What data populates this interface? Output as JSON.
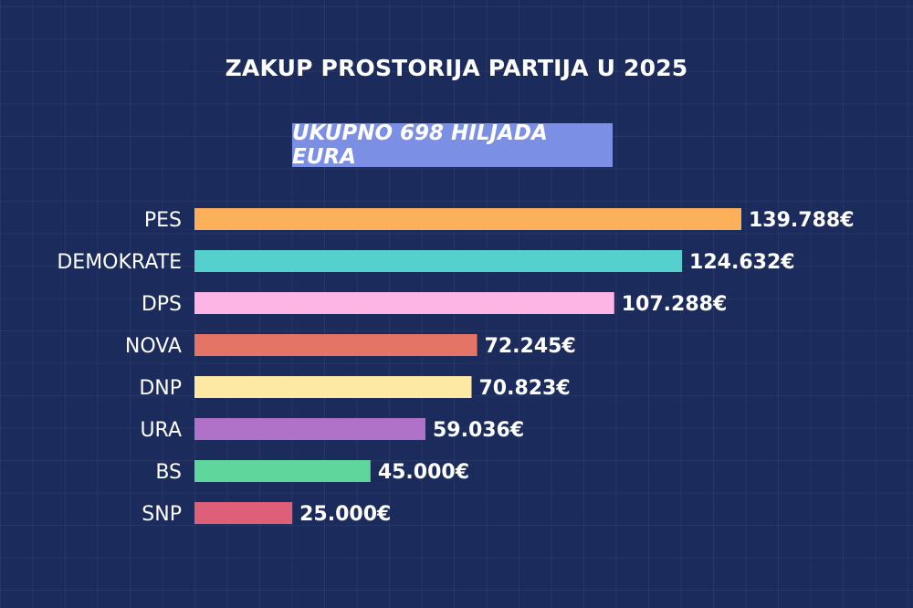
{
  "chart_data": {
    "type": "bar",
    "orientation": "horizontal",
    "title": "ZAKUP PROSTORIJA PARTIJA U 2025",
    "subtitle": "UKUPNO 698 HILJADA EURA",
    "categories": [
      "PES",
      "DEMOKRATE",
      "DPS",
      "NOVA",
      "DNP",
      "URA",
      "BS",
      "SNP"
    ],
    "values": [
      139788,
      124632,
      107288,
      72245,
      70823,
      59036,
      45000,
      25000
    ],
    "value_labels": [
      "139.788€",
      "124.632€",
      "107.288€",
      "72.245€",
      "70.823€",
      "59.036€",
      "45.000€",
      "25.000€"
    ],
    "colors": [
      "#fdb05a",
      "#56d0cc",
      "#fdb5e6",
      "#e47466",
      "#fde9a3",
      "#b072c8",
      "#5fd69b",
      "#dd5f78"
    ],
    "grid": false,
    "legend": "none"
  },
  "style": {
    "background": "#1b2b5b",
    "banner_color": "#7b8fe4"
  }
}
